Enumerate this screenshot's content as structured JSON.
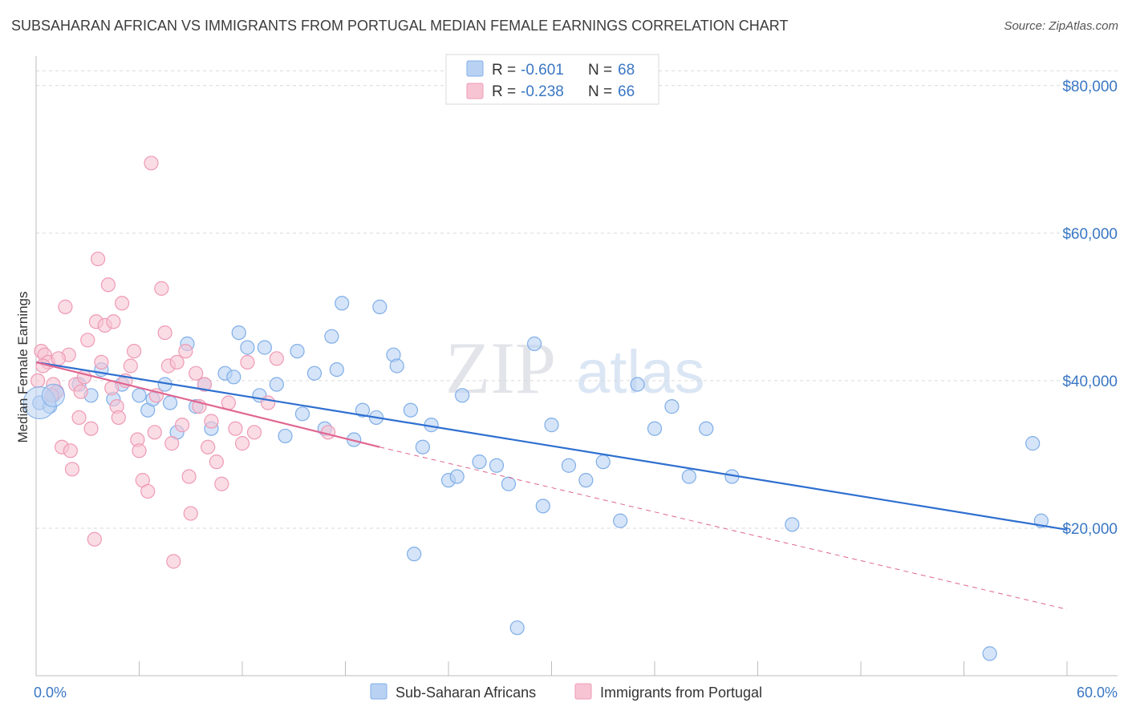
{
  "title": "SUBSAHARAN AFRICAN VS IMMIGRANTS FROM PORTUGAL MEDIAN FEMALE EARNINGS CORRELATION CHART",
  "source": "Source: ZipAtlas.com",
  "watermark": {
    "zip": "ZIP",
    "atlas": "atlas"
  },
  "chart_data": {
    "type": "scatter",
    "ylabel": "Median Female Earnings",
    "xlim": [
      0,
      60
    ],
    "ylim": [
      0,
      84000
    ],
    "x_tick_labels": [
      {
        "value": 0,
        "label": "0.0%"
      },
      {
        "value": 60,
        "label": "60.0%"
      }
    ],
    "y_ticks": [
      {
        "value": 20000,
        "label": "$20,000"
      },
      {
        "value": 40000,
        "label": "$40,000"
      },
      {
        "value": 60000,
        "label": "$60,000"
      },
      {
        "value": 80000,
        "label": "$80,000"
      }
    ],
    "grid": "horizontal dashed",
    "legend_position": "top-center",
    "legend": [
      {
        "r_label": "R =",
        "r_value": "-0.601",
        "n_label": "N =",
        "n_value": "68"
      },
      {
        "r_label": "R =",
        "r_value": "-0.238",
        "n_label": "N =",
        "n_value": "66"
      }
    ],
    "series": [
      {
        "name": "Sub-Saharan Africans",
        "color": "#7faee8",
        "fill": "#b9d2f3",
        "line_color": "#2e6fd0",
        "trend": {
          "x0": 0,
          "y0": 42500,
          "x1": 60,
          "y1": 19800,
          "dashed_after": null
        },
        "points": [
          [
            0.2,
            37000
          ],
          [
            1.0,
            38000
          ],
          [
            1.2,
            38500
          ],
          [
            2.5,
            39500
          ],
          [
            3.2,
            38000
          ],
          [
            3.8,
            41500
          ],
          [
            4.5,
            37500
          ],
          [
            5.0,
            39500
          ],
          [
            6.0,
            38000
          ],
          [
            6.5,
            36000
          ],
          [
            6.8,
            37500
          ],
          [
            7.5,
            39500
          ],
          [
            7.8,
            37000
          ],
          [
            8.2,
            33000
          ],
          [
            8.8,
            45000
          ],
          [
            9.3,
            36500
          ],
          [
            9.8,
            39500
          ],
          [
            10.2,
            33500
          ],
          [
            11.0,
            41000
          ],
          [
            11.5,
            40500
          ],
          [
            11.8,
            46500
          ],
          [
            12.3,
            44500
          ],
          [
            13.0,
            38000
          ],
          [
            13.3,
            44500
          ],
          [
            14.0,
            39500
          ],
          [
            14.5,
            32500
          ],
          [
            15.2,
            44000
          ],
          [
            15.5,
            35500
          ],
          [
            16.2,
            41000
          ],
          [
            16.8,
            33500
          ],
          [
            17.2,
            46000
          ],
          [
            17.5,
            41500
          ],
          [
            17.8,
            50500
          ],
          [
            18.5,
            32000
          ],
          [
            19.0,
            36000
          ],
          [
            19.8,
            35000
          ],
          [
            20.0,
            50000
          ],
          [
            20.8,
            43500
          ],
          [
            21.0,
            42000
          ],
          [
            21.8,
            36000
          ],
          [
            22.5,
            31000
          ],
          [
            23.0,
            34000
          ],
          [
            24.0,
            26500
          ],
          [
            24.5,
            27000
          ],
          [
            24.8,
            38000
          ],
          [
            25.8,
            29000
          ],
          [
            26.8,
            28500
          ],
          [
            27.5,
            26000
          ],
          [
            28.0,
            6500
          ],
          [
            29.0,
            45000
          ],
          [
            29.5,
            23000
          ],
          [
            30.0,
            34000
          ],
          [
            31.0,
            28500
          ],
          [
            32.0,
            26500
          ],
          [
            33.0,
            29000
          ],
          [
            34.0,
            21000
          ],
          [
            35.0,
            39500
          ],
          [
            36.0,
            33500
          ],
          [
            37.0,
            36500
          ],
          [
            38.0,
            27000
          ],
          [
            39.0,
            33500
          ],
          [
            40.5,
            27000
          ],
          [
            44.0,
            20500
          ],
          [
            55.5,
            3000
          ],
          [
            58.0,
            31500
          ],
          [
            58.5,
            21000
          ],
          [
            22.0,
            16500
          ],
          [
            0.8,
            36500
          ]
        ]
      },
      {
        "name": "Immigrants from Portugal",
        "color": "#ef9ab5",
        "fill": "#f7c4d4",
        "line_color": "#e06691",
        "trend": {
          "x0": 0,
          "y0": 42500,
          "x1": 20,
          "y1": 31000,
          "dashed_to": [
            60,
            9000
          ]
        },
        "points": [
          [
            0.1,
            40000
          ],
          [
            0.3,
            44000
          ],
          [
            0.5,
            43500
          ],
          [
            0.7,
            42500
          ],
          [
            1.0,
            39500
          ],
          [
            1.2,
            38500
          ],
          [
            1.5,
            31000
          ],
          [
            1.7,
            50000
          ],
          [
            1.9,
            43500
          ],
          [
            2.0,
            30500
          ],
          [
            2.1,
            28000
          ],
          [
            2.3,
            39500
          ],
          [
            2.5,
            35000
          ],
          [
            2.8,
            40500
          ],
          [
            3.0,
            45500
          ],
          [
            3.2,
            33500
          ],
          [
            3.4,
            18500
          ],
          [
            3.5,
            48000
          ],
          [
            3.6,
            56500
          ],
          [
            3.8,
            42500
          ],
          [
            4.0,
            47500
          ],
          [
            4.2,
            53000
          ],
          [
            4.4,
            39000
          ],
          [
            4.5,
            48000
          ],
          [
            4.7,
            36500
          ],
          [
            4.8,
            35000
          ],
          [
            5.0,
            50500
          ],
          [
            5.2,
            40000
          ],
          [
            5.5,
            42000
          ],
          [
            5.7,
            44000
          ],
          [
            5.9,
            32000
          ],
          [
            6.0,
            30500
          ],
          [
            6.2,
            26500
          ],
          [
            6.5,
            25000
          ],
          [
            6.7,
            69500
          ],
          [
            6.9,
            33000
          ],
          [
            7.0,
            38000
          ],
          [
            7.3,
            52500
          ],
          [
            7.5,
            46500
          ],
          [
            7.7,
            42000
          ],
          [
            7.9,
            31500
          ],
          [
            8.0,
            15500
          ],
          [
            8.2,
            42500
          ],
          [
            8.5,
            34000
          ],
          [
            8.7,
            44000
          ],
          [
            8.9,
            27000
          ],
          [
            9.0,
            22000
          ],
          [
            9.3,
            41000
          ],
          [
            9.5,
            36500
          ],
          [
            9.8,
            39500
          ],
          [
            10.0,
            31000
          ],
          [
            10.2,
            34500
          ],
          [
            10.5,
            29000
          ],
          [
            10.8,
            26000
          ],
          [
            11.2,
            37000
          ],
          [
            11.6,
            33500
          ],
          [
            12.0,
            31500
          ],
          [
            12.3,
            42500
          ],
          [
            12.7,
            33000
          ],
          [
            13.5,
            37000
          ],
          [
            14.0,
            43000
          ],
          [
            17.0,
            33000
          ],
          [
            2.6,
            38500
          ],
          [
            1.3,
            43000
          ],
          [
            0.9,
            38000
          ],
          [
            0.4,
            42000
          ]
        ]
      }
    ]
  }
}
